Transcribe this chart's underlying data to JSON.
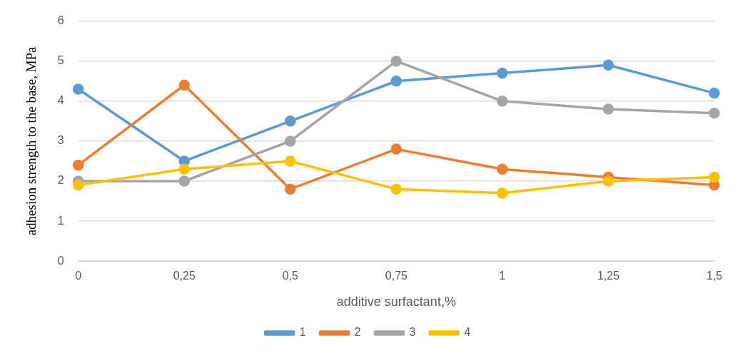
{
  "chart_data": {
    "type": "line",
    "xlabel": "additive surfactant,%",
    "ylabel": "adhesion strength to the base, MPa",
    "categories": [
      "0",
      "0,25",
      "0,5",
      "0,75",
      "1",
      "1,25",
      "1,5"
    ],
    "series": [
      {
        "name": "1",
        "color": "#5b9bd5",
        "values": [
          4.3,
          2.5,
          3.5,
          4.5,
          4.7,
          4.9,
          4.2
        ]
      },
      {
        "name": "2",
        "color": "#ed7d31",
        "values": [
          2.4,
          4.4,
          1.8,
          2.8,
          2.3,
          2.1,
          1.9
        ]
      },
      {
        "name": "3",
        "color": "#a5a5a5",
        "values": [
          2.0,
          2.0,
          3.0,
          5.0,
          4.0,
          3.8,
          3.7
        ]
      },
      {
        "name": "4",
        "color": "#ffc000",
        "values": [
          1.9,
          2.3,
          2.5,
          1.8,
          1.7,
          2.0,
          2.1
        ]
      }
    ],
    "ylim": [
      0,
      6
    ],
    "yticks": [
      0,
      1,
      2,
      3,
      4,
      5,
      6
    ],
    "grid": "y",
    "legend": "bottom",
    "marker": "circle",
    "line_style": "solid"
  }
}
